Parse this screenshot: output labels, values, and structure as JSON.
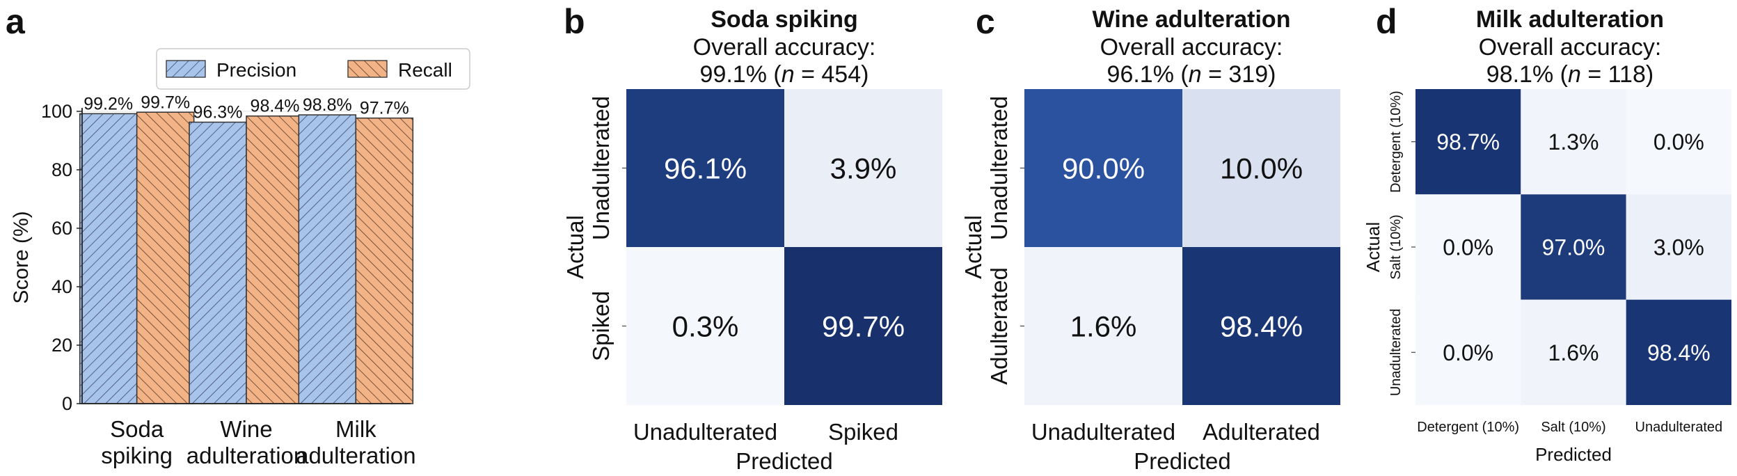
{
  "panels": {
    "a": {
      "letter": "a"
    },
    "b": {
      "letter": "b",
      "title": "Soda spiking",
      "subtitle1": "Overall accuracy:",
      "acc": "99.1% (",
      "n_italic": "n",
      "n_rest": " = 454)"
    },
    "c": {
      "letter": "c",
      "title": "Wine adulteration",
      "subtitle1": "Overall accuracy:",
      "acc": "96.1% (",
      "n_italic": "n",
      "n_rest": " = 319)"
    },
    "d": {
      "letter": "d",
      "title": "Milk adulteration",
      "subtitle1": "Overall accuracy:",
      "acc": "98.1% (",
      "n_italic": "n",
      "n_rest": " = 118)"
    }
  },
  "chart_data": [
    {
      "type": "bar",
      "panel": "a",
      "categories": [
        [
          "Soda",
          "spiking"
        ],
        [
          "Wine",
          "adulteration"
        ],
        [
          "Milk",
          "adulteration"
        ]
      ],
      "series": [
        {
          "name": "Precision",
          "values": [
            99.2,
            96.3,
            98.8
          ],
          "labels": [
            "99.2%",
            "96.3%",
            "98.8%"
          ],
          "color": "#a9c4ea",
          "hatch": "///"
        },
        {
          "name": "Recall",
          "values": [
            99.7,
            98.4,
            97.7
          ],
          "labels": [
            "99.7%",
            "98.4%",
            "97.7%"
          ],
          "color": "#f2b386",
          "hatch": "\\\\\\"
        }
      ],
      "ylabel": "Score (%)",
      "ylim": [
        0,
        100
      ],
      "yticks": [
        0,
        20,
        40,
        60,
        80,
        100
      ],
      "grid": true,
      "legend": "top-center"
    },
    {
      "type": "heatmap",
      "panel": "b",
      "rows": [
        "Unadulterated",
        "Spiked"
      ],
      "cols": [
        "Unadulterated",
        "Spiked"
      ],
      "values": [
        [
          96.1,
          3.9
        ],
        [
          0.3,
          99.7
        ]
      ],
      "labels": [
        [
          "96.1%",
          "3.9%"
        ],
        [
          "0.3%",
          "99.7%"
        ]
      ],
      "xlabel": "Predicted",
      "ylabel": "Actual"
    },
    {
      "type": "heatmap",
      "panel": "c",
      "rows": [
        "Unadulterated",
        "Adulterated"
      ],
      "cols": [
        "Unadulterated",
        "Adulterated"
      ],
      "values": [
        [
          90.0,
          10.0
        ],
        [
          1.6,
          98.4
        ]
      ],
      "labels": [
        [
          "90.0%",
          "10.0%"
        ],
        [
          "1.6%",
          "98.4%"
        ]
      ],
      "xlabel": "Predicted",
      "ylabel": "Actual"
    },
    {
      "type": "heatmap",
      "panel": "d",
      "rows": [
        "Detergent (10%)",
        "Salt (10%)",
        "Unadulterated"
      ],
      "cols": [
        "Detergent (10%)",
        "Salt (10%)",
        "Unadulterated"
      ],
      "values": [
        [
          98.7,
          1.3,
          0.0
        ],
        [
          0.0,
          97.0,
          3.0
        ],
        [
          0.0,
          1.6,
          98.4
        ]
      ],
      "labels": [
        [
          "98.7%",
          "1.3%",
          "0.0%"
        ],
        [
          "0.0%",
          "97.0%",
          "3.0%"
        ],
        [
          "0.0%",
          "1.6%",
          "98.4%"
        ]
      ],
      "xlabel": "Predicted",
      "ylabel": "Actual"
    }
  ]
}
